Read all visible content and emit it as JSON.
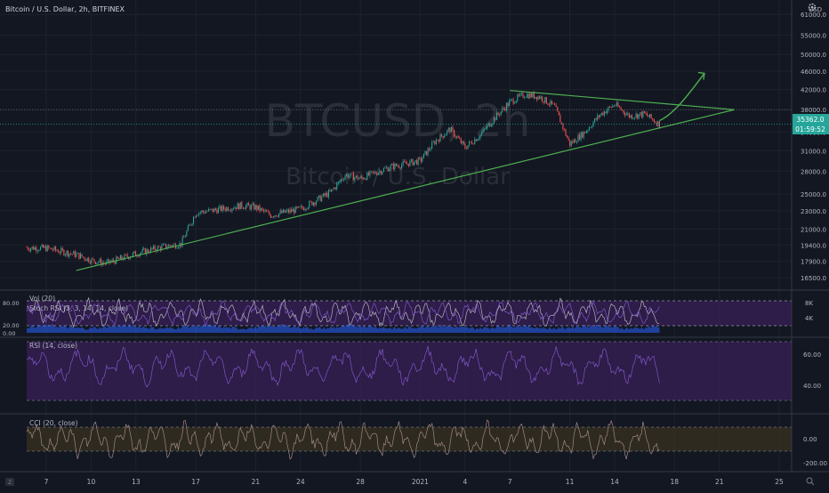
{
  "header": {
    "symbol_title": "Bitcoin / U.S. Dollar, 2h, BITFINEX",
    "currency": "USD"
  },
  "watermark": {
    "ticker": "BTCUSD, 2h",
    "name": "Bitcoin / U.S. Dollar"
  },
  "colors": {
    "background": "#131722",
    "grid": "#1e222d",
    "axis_text": "#b2b5be",
    "up": "#26a69a",
    "down": "#ef5350",
    "trendline": "#4caf50",
    "price_tag": "#26a69a",
    "stoch_k": "#b2b5be",
    "stoch_d": "#7e57c2",
    "volume": "#2962ff",
    "rsi": "#7e57c2",
    "cci": "#a1887f",
    "band_purple": "#3b1f5a",
    "band_olive": "#3a3320"
  },
  "icons": [
    "settings-gear-icon",
    "tradingview-logo-icon",
    "zoom-icon"
  ],
  "chart_data": [
    {
      "type": "candlestick",
      "title": "Bitcoin / U.S. Dollar, 2h, BITFINEX",
      "x_ticks": [
        "7",
        "10",
        "13",
        "17",
        "21",
        "24",
        "28",
        "2021",
        "4",
        "7",
        "11",
        "14",
        "18",
        "21",
        "25"
      ],
      "y_ticks": [
        16500,
        17900,
        19400,
        21000,
        23000,
        25000,
        28000,
        31000,
        34000,
        38000,
        42000,
        46000,
        50000,
        55000,
        61000
      ],
      "y_scale": "log",
      "ylim": [
        15600,
        66000
      ],
      "last_price": "35362.0",
      "countdown": "01:59:52",
      "price_path": [
        {
          "x": "Dec 4",
          "y": 19200
        },
        {
          "x": "Dec 7",
          "y": 19100
        },
        {
          "x": "Dec 9",
          "y": 18500
        },
        {
          "x": "Dec 10",
          "y": 18000
        },
        {
          "x": "Dec 11",
          "y": 17700
        },
        {
          "x": "Dec 13",
          "y": 18600
        },
        {
          "x": "Dec 15",
          "y": 19300
        },
        {
          "x": "Dec 16",
          "y": 19500
        },
        {
          "x": "Dec 17",
          "y": 22800
        },
        {
          "x": "Dec 18",
          "y": 23000
        },
        {
          "x": "Dec 20",
          "y": 23600
        },
        {
          "x": "Dec 21",
          "y": 23400
        },
        {
          "x": "Dec 22",
          "y": 22500
        },
        {
          "x": "Dec 24",
          "y": 23200
        },
        {
          "x": "Dec 26",
          "y": 25200
        },
        {
          "x": "Dec 27",
          "y": 27500
        },
        {
          "x": "Dec 28",
          "y": 27000
        },
        {
          "x": "Dec 30",
          "y": 28600
        },
        {
          "x": "Jan 1",
          "y": 29500
        },
        {
          "x": "Jan 2",
          "y": 32500
        },
        {
          "x": "Jan 3",
          "y": 34500
        },
        {
          "x": "Jan 4",
          "y": 31500
        },
        {
          "x": "Jan 5",
          "y": 33500
        },
        {
          "x": "Jan 6",
          "y": 36500
        },
        {
          "x": "Jan 7",
          "y": 39500
        },
        {
          "x": "Jan 8",
          "y": 41000
        },
        {
          "x": "Jan 9",
          "y": 40500
        },
        {
          "x": "Jan 10",
          "y": 38500
        },
        {
          "x": "Jan 11",
          "y": 32000
        },
        {
          "x": "Jan 12",
          "y": 34000
        },
        {
          "x": "Jan 13",
          "y": 37000
        },
        {
          "x": "Jan 14",
          "y": 39000
        },
        {
          "x": "Jan 15",
          "y": 36800
        },
        {
          "x": "Jan 16",
          "y": 37200
        },
        {
          "x": "Jan 17",
          "y": 35362
        }
      ],
      "trendlines": [
        {
          "name": "support",
          "from": {
            "x": "Dec 9",
            "y": 17100
          },
          "to": {
            "x": "Jan 22",
            "y": 38000
          }
        },
        {
          "name": "resistance",
          "from": {
            "x": "Jan 7",
            "y": 41800
          },
          "to": {
            "x": "Jan 22",
            "y": 38000
          }
        }
      ],
      "arrow": {
        "from": {
          "x": "Jan 17",
          "y": 36000
        },
        "to": {
          "x": "Jan 20",
          "y": 45500
        }
      }
    },
    {
      "type": "line",
      "title": "Vol (20)",
      "subtitle": "Stoch RSI (3, 3, 14, 14, close)",
      "y_ticks_left": [
        "80.00",
        "20.00",
        "0.00"
      ],
      "y_ticks_right": [
        "8K",
        "4K"
      ],
      "band": [
        20,
        80
      ]
    },
    {
      "type": "line",
      "title": "RSI (14, close)",
      "y_ticks": [
        "60.00",
        "40.00"
      ],
      "band": [
        30,
        70
      ]
    },
    {
      "type": "line",
      "title": "CCI (20, close)",
      "y_ticks": [
        "0.00",
        "-200.00"
      ],
      "band": [
        -100,
        100
      ]
    }
  ]
}
